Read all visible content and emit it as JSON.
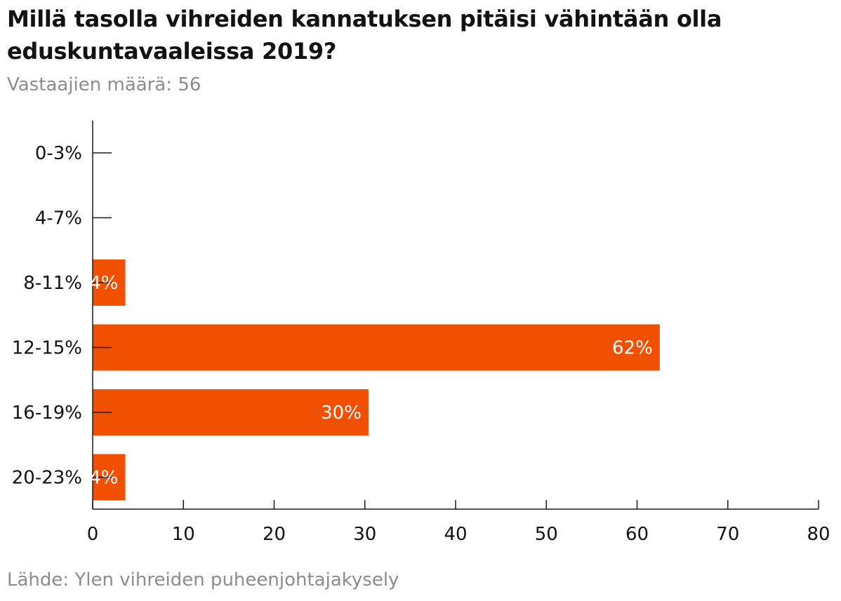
{
  "title": "Millä tasolla vihreiden kannatuksen pitäisi vähintään olla eduskuntavaaleissa 2019?",
  "subtitle": "Vastaajien määrä: 56",
  "source": "Lähde: Ylen vihreiden puheenjohtajakysely",
  "colors": {
    "bar": "#f05000",
    "axis": "#1a1a1a",
    "text": "#121212",
    "muted": "#8c8c8c"
  },
  "chart_data": {
    "type": "bar",
    "orientation": "horizontal",
    "title": "Millä tasolla vihreiden kannatuksen pitäisi vähintään olla eduskuntavaaleissa 2019?",
    "subtitle": "Vastaajien määrä: 56",
    "categories": [
      "0-3%",
      "4-7%",
      "8-11%",
      "12-15%",
      "16-19%",
      "20-23%"
    ],
    "values": [
      0,
      0,
      3.6,
      62.5,
      30.4,
      3.6
    ],
    "data_labels": [
      "",
      "",
      "4%",
      "62%",
      "30%",
      "4%"
    ],
    "xlim": [
      0,
      80
    ],
    "xticks": [
      0,
      10,
      20,
      30,
      40,
      50,
      60,
      70,
      80
    ],
    "xlabel": "",
    "ylabel": "",
    "grid": false,
    "legend": "none"
  }
}
